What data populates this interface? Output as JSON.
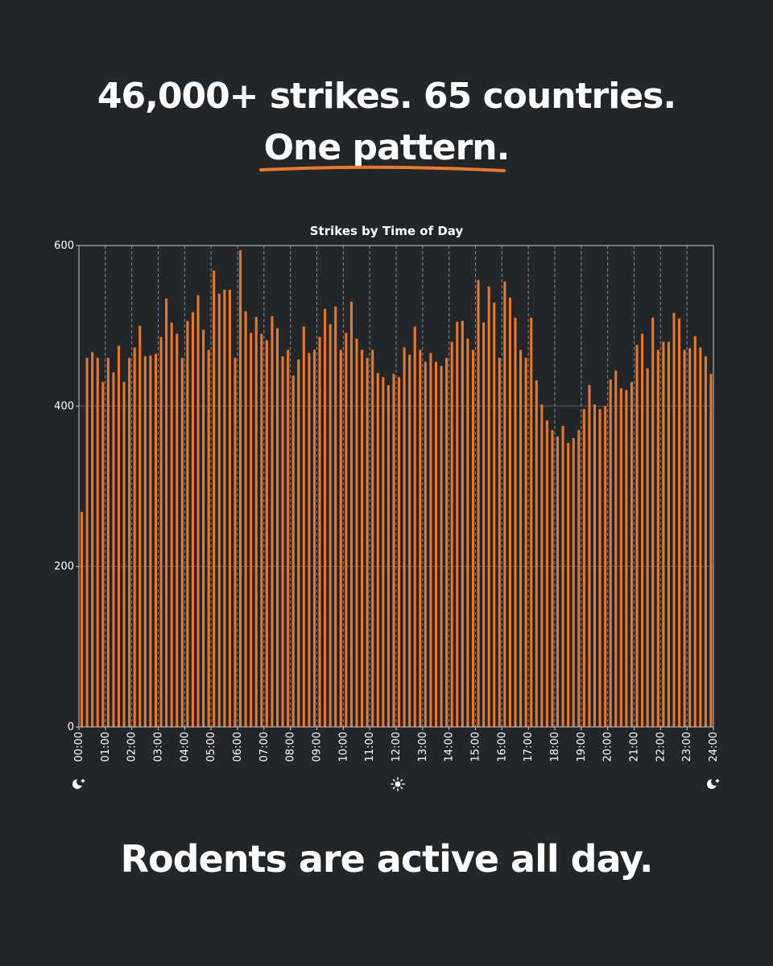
{
  "headline": {
    "line1": "46,000+ strikes. 65 countries.",
    "line2": "One pattern."
  },
  "footer": "Rodents are active all day.",
  "colors": {
    "background": "#232629",
    "bar": "#e8782f",
    "accent": "#e8782f"
  },
  "icons": {
    "start": "moon-icon",
    "middle": "sun-icon",
    "end": "moon-icon"
  },
  "chart_data": {
    "type": "bar",
    "title": "Strikes by Time of Day",
    "xlabel": "",
    "ylabel": "",
    "ylim": [
      0,
      600
    ],
    "yticks": [
      0,
      200,
      400,
      600
    ],
    "xlim": [
      0,
      24
    ],
    "bin_hours": 0.2,
    "xtick_labels": [
      "00:00",
      "01:00",
      "02:00",
      "03:00",
      "04:00",
      "05:00",
      "06:00",
      "07:00",
      "08:00",
      "09:00",
      "10:00",
      "11:00",
      "12:00",
      "13:00",
      "14:00",
      "15:00",
      "16:00",
      "17:00",
      "18:00",
      "19:00",
      "20:00",
      "21:00",
      "22:00",
      "23:00",
      "24:00"
    ],
    "values": [
      268,
      460,
      467,
      460,
      430,
      460,
      442,
      475,
      430,
      460,
      473,
      500,
      462,
      463,
      465,
      486,
      534,
      504,
      490,
      460,
      506,
      517,
      538,
      495,
      470,
      569,
      540,
      545,
      545,
      460,
      594,
      518,
      491,
      511,
      490,
      482,
      512,
      497,
      462,
      470,
      438,
      458,
      499,
      466,
      470,
      486,
      521,
      502,
      524,
      470,
      491,
      530,
      484,
      470,
      460,
      470,
      441,
      436,
      426,
      440,
      436,
      473,
      464,
      499,
      470,
      455,
      466,
      455,
      450,
      460,
      480,
      505,
      506,
      484,
      470,
      557,
      504,
      549,
      529,
      460,
      555,
      535,
      510,
      470,
      460,
      510,
      432,
      402,
      382,
      370,
      362,
      375,
      354,
      360,
      370,
      396,
      426,
      402,
      396,
      400,
      433,
      444,
      422,
      420,
      430,
      476,
      490,
      447,
      510,
      470,
      480,
      480,
      516,
      509,
      470,
      472,
      487,
      473,
      462,
      440
    ]
  }
}
